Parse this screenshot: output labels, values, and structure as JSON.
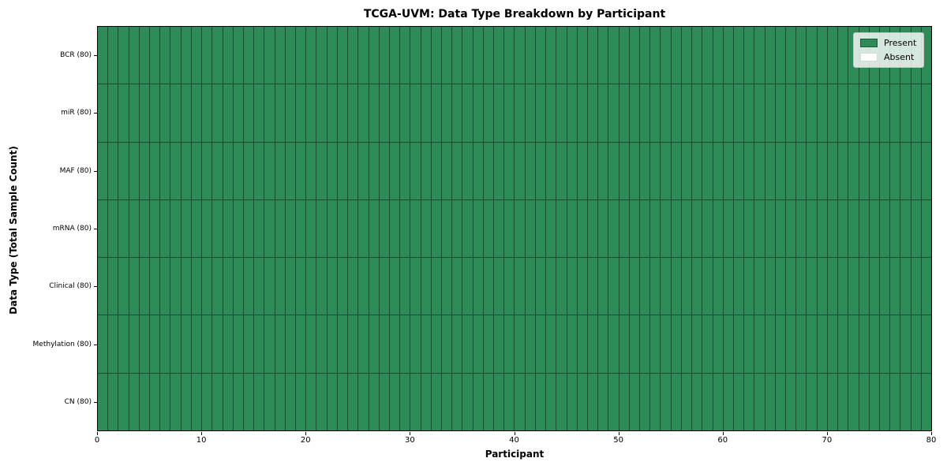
{
  "title": "TCGA-UVM: Data Type Breakdown by Participant",
  "xlabel": "Participant",
  "ylabel": "Data Type (Total Sample Count)",
  "legend": {
    "position": "upper right",
    "present_label": "Present",
    "absent_label": "Absent"
  },
  "colors": {
    "present": "#2e8b57",
    "absent": "#ffffff"
  },
  "x_ticks": [
    0,
    10,
    20,
    30,
    40,
    50,
    60,
    70,
    80
  ],
  "chart_data": {
    "type": "heatmap",
    "title": "TCGA-UVM: Data Type Breakdown by Participant",
    "xlabel": "Participant",
    "ylabel": "Data Type (Total Sample Count)",
    "x_range": [
      0,
      80
    ],
    "n_participants": 80,
    "legend_entries": [
      "Present",
      "Absent"
    ],
    "legend_position": "upper right",
    "grid": "cell borders on all 80 columns and 7 rows",
    "all_present": true,
    "rows": [
      {
        "label": "BCR (80)",
        "data_type": "BCR",
        "total_sample_count": 80,
        "present_count": 80,
        "absent_count": 0
      },
      {
        "label": "miR (80)",
        "data_type": "miR",
        "total_sample_count": 80,
        "present_count": 80,
        "absent_count": 0
      },
      {
        "label": "MAF (80)",
        "data_type": "MAF",
        "total_sample_count": 80,
        "present_count": 80,
        "absent_count": 0
      },
      {
        "label": "mRNA (80)",
        "data_type": "mRNA",
        "total_sample_count": 80,
        "present_count": 80,
        "absent_count": 0
      },
      {
        "label": "Clinical (80)",
        "data_type": "Clinical",
        "total_sample_count": 80,
        "present_count": 80,
        "absent_count": 0
      },
      {
        "label": "Methylation (80)",
        "data_type": "Methylation",
        "total_sample_count": 80,
        "present_count": 80,
        "absent_count": 0
      },
      {
        "label": "CN (80)",
        "data_type": "CN",
        "total_sample_count": 80,
        "present_count": 80,
        "absent_count": 0
      }
    ]
  }
}
